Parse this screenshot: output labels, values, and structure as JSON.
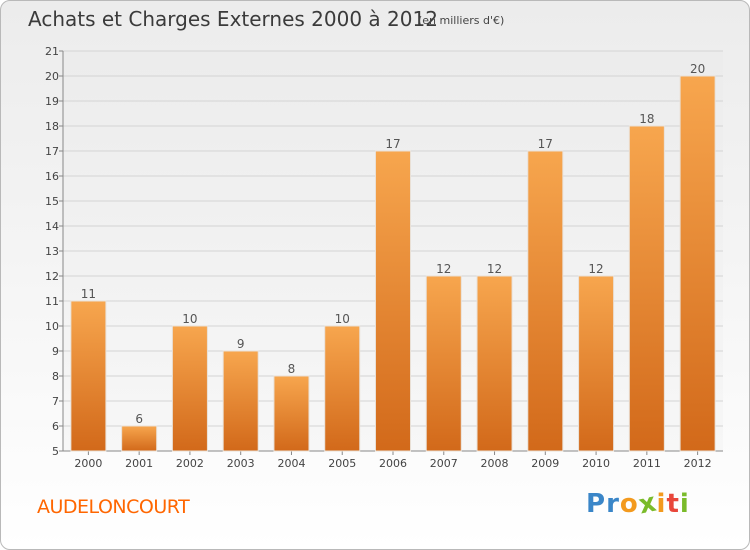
{
  "header": {
    "title": "Achats et Charges Externes 2000 à 2012",
    "unit": "(en milliers d'€)"
  },
  "footer": {
    "location": "AUDELONCOURT",
    "brand_letters": [
      "P",
      "r",
      "o",
      "x",
      "i",
      "t",
      "i"
    ]
  },
  "colors": {
    "bar_top": "#f7a64e",
    "bar_bottom": "#d2691a",
    "location": "#ff6600",
    "logo_letters": [
      "#3a86c8",
      "#3a86c8",
      "#f39a1e",
      "#7abb2a",
      "#f39a1e",
      "#e8463a",
      "#7abb2a"
    ]
  },
  "chart_data": {
    "type": "bar",
    "title": "Achats et Charges Externes 2000 à 2012",
    "subtitle": "(en milliers d'€)",
    "categories": [
      "2000",
      "2001",
      "2002",
      "2003",
      "2004",
      "2005",
      "2006",
      "2007",
      "2008",
      "2009",
      "2010",
      "2011",
      "2012"
    ],
    "values": [
      11,
      6,
      10,
      9,
      8,
      10,
      17,
      12,
      12,
      17,
      12,
      18,
      20
    ],
    "ylim": [
      5,
      21
    ],
    "yticks": [
      5,
      6,
      7,
      8,
      9,
      10,
      11,
      12,
      13,
      14,
      15,
      16,
      17,
      18,
      19,
      20,
      21
    ],
    "xlabel": "",
    "ylabel": "",
    "grid": "horizontal"
  }
}
